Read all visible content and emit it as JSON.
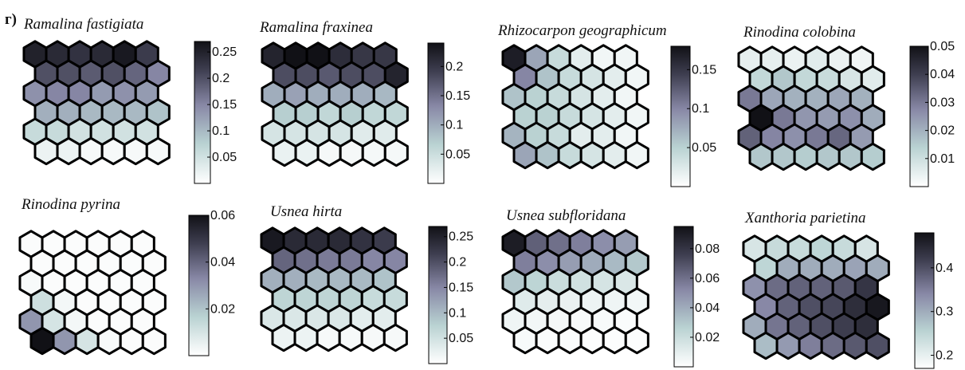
{
  "panel_label": "г)",
  "colormap": {
    "name": "bone",
    "stops": [
      {
        "v": 0.0,
        "color": "#ffffff"
      },
      {
        "v": 0.28,
        "color": "#b9d2d2"
      },
      {
        "v": 0.55,
        "color": "#8888a6"
      },
      {
        "v": 0.8,
        "color": "#3e3e50"
      },
      {
        "v": 1.0,
        "color": "#111116"
      }
    ]
  },
  "chart_data": [
    {
      "type": "heatmap",
      "title": "Ramalina fastigiata",
      "ylim": [
        0,
        0.27
      ],
      "ticks": [
        0.05,
        0.1,
        0.15,
        0.2,
        0.25
      ],
      "tick_labels": [
        "0.05",
        "0.1",
        "0.15",
        "0.2",
        "0.25"
      ],
      "grid_rows": 6,
      "grid_cols": 6,
      "values": [
        [
          0.25,
          0.24,
          0.23,
          0.24,
          0.26,
          0.22
        ],
        [
          0.2,
          0.2,
          0.19,
          0.2,
          0.18,
          0.15
        ],
        [
          0.14,
          0.15,
          0.15,
          0.13,
          0.14,
          0.13
        ],
        [
          0.11,
          0.11,
          0.1,
          0.1,
          0.1,
          0.09
        ],
        [
          0.06,
          0.06,
          0.05,
          0.05,
          0.05,
          0.05
        ],
        [
          0.02,
          0.02,
          0.01,
          0.01,
          0.01,
          0.01
        ]
      ]
    },
    {
      "type": "heatmap",
      "title": "Ramalina fraxinea",
      "ylim": [
        0,
        0.24
      ],
      "ticks": [
        0.05,
        0.1,
        0.15,
        0.2
      ],
      "tick_labels": [
        "0.05",
        "0.1",
        "0.15",
        "0.2"
      ],
      "grid_rows": 6,
      "grid_cols": 6,
      "values": [
        [
          0.22,
          0.24,
          0.24,
          0.21,
          0.2,
          0.2
        ],
        [
          0.18,
          0.18,
          0.17,
          0.18,
          0.18,
          0.22
        ],
        [
          0.1,
          0.11,
          0.1,
          0.1,
          0.1,
          0.09
        ],
        [
          0.07,
          0.07,
          0.06,
          0.07,
          0.06,
          0.06
        ],
        [
          0.04,
          0.04,
          0.04,
          0.04,
          0.03,
          0.03
        ],
        [
          0.02,
          0.02,
          0.01,
          0.01,
          0.01,
          0.01
        ]
      ]
    },
    {
      "type": "heatmap",
      "title": "Rhizocarpon geographicum",
      "ylim": [
        0,
        0.18
      ],
      "ticks": [
        0.05,
        0.1,
        0.15
      ],
      "tick_labels": [
        "0.05",
        "0.1",
        "0.15"
      ],
      "grid_rows": 6,
      "grid_cols": 6,
      "values": [
        [
          0.17,
          0.08,
          0.04,
          0.02,
          0.01,
          0.01
        ],
        [
          0.1,
          0.06,
          0.04,
          0.03,
          0.02,
          0.01
        ],
        [
          0.06,
          0.05,
          0.04,
          0.03,
          0.02,
          0.01
        ],
        [
          0.05,
          0.05,
          0.04,
          0.03,
          0.02,
          0.01
        ],
        [
          0.07,
          0.05,
          0.04,
          0.02,
          0.02,
          0.01
        ],
        [
          0.08,
          0.06,
          0.04,
          0.03,
          0.02,
          0.01
        ]
      ]
    },
    {
      "type": "heatmap",
      "title": "Rinodina colobina",
      "ylim": [
        0,
        0.05
      ],
      "ticks": [
        0.01,
        0.02,
        0.03,
        0.04,
        0.05
      ],
      "tick_labels": [
        "0.01",
        "0.02",
        "0.03",
        "0.04",
        "0.05"
      ],
      "grid_rows": 6,
      "grid_cols": 6,
      "values": [
        [
          0.005,
          0.005,
          0.004,
          0.006,
          0.004,
          0.003
        ],
        [
          0.012,
          0.016,
          0.012,
          0.011,
          0.008,
          0.006
        ],
        [
          0.03,
          0.022,
          0.02,
          0.02,
          0.022,
          0.02
        ],
        [
          0.05,
          0.03,
          0.025,
          0.024,
          0.026,
          0.021
        ],
        [
          0.034,
          0.028,
          0.026,
          0.03,
          0.033,
          0.024
        ],
        [
          0.016,
          0.016,
          0.015,
          0.016,
          0.016,
          0.015
        ]
      ]
    },
    {
      "type": "heatmap",
      "title": "Rinodina pyrina",
      "ylim": [
        0,
        0.06
      ],
      "ticks": [
        0.02,
        0.04,
        0.06
      ],
      "tick_labels": [
        "0.02",
        "0.04",
        "0.06"
      ],
      "grid_rows": 6,
      "grid_cols": 6,
      "values": [
        [
          0.001,
          0.001,
          0.001,
          0.001,
          0.001,
          0.001
        ],
        [
          0.001,
          0.001,
          0.001,
          0.001,
          0.001,
          0.001
        ],
        [
          0.002,
          0.001,
          0.001,
          0.001,
          0.001,
          0.001
        ],
        [
          0.012,
          0.003,
          0.001,
          0.001,
          0.001,
          0.001
        ],
        [
          0.03,
          0.01,
          0.003,
          0.001,
          0.001,
          0.001
        ],
        [
          0.06,
          0.03,
          0.01,
          0.002,
          0.001,
          0.001
        ]
      ]
    },
    {
      "type": "heatmap",
      "title": "Usnea hirta",
      "ylim": [
        0,
        0.27
      ],
      "ticks": [
        0.05,
        0.1,
        0.15,
        0.2,
        0.25
      ],
      "tick_labels": [
        "0.05",
        "0.1",
        "0.15",
        "0.2",
        "0.25"
      ],
      "grid_rows": 6,
      "grid_cols": 6,
      "values": [
        [
          0.26,
          0.24,
          0.24,
          0.24,
          0.23,
          0.22
        ],
        [
          0.18,
          0.17,
          0.16,
          0.16,
          0.15,
          0.15
        ],
        [
          0.11,
          0.11,
          0.1,
          0.1,
          0.1,
          0.09
        ],
        [
          0.07,
          0.07,
          0.07,
          0.07,
          0.06,
          0.06
        ],
        [
          0.04,
          0.04,
          0.04,
          0.04,
          0.03,
          0.03
        ],
        [
          0.02,
          0.02,
          0.01,
          0.01,
          0.01,
          0.01
        ]
      ]
    },
    {
      "type": "heatmap",
      "title": "Usnea subfloridana",
      "ylim": [
        0,
        0.095
      ],
      "ticks": [
        0.02,
        0.04,
        0.06,
        0.08
      ],
      "tick_labels": [
        "0.02",
        "0.04",
        "0.06",
        "0.08"
      ],
      "grid_rows": 6,
      "grid_cols": 6,
      "values": [
        [
          0.09,
          0.065,
          0.06,
          0.055,
          0.05,
          0.045
        ],
        [
          0.055,
          0.05,
          0.045,
          0.04,
          0.035,
          0.03
        ],
        [
          0.03,
          0.025,
          0.02,
          0.018,
          0.016,
          0.014
        ],
        [
          0.012,
          0.01,
          0.008,
          0.007,
          0.006,
          0.005
        ],
        [
          0.006,
          0.005,
          0.004,
          0.003,
          0.003,
          0.002
        ],
        [
          0.003,
          0.002,
          0.002,
          0.001,
          0.001,
          0.001
        ]
      ]
    },
    {
      "type": "heatmap",
      "title": "Xanthoria parietina",
      "ylim": [
        0.17,
        0.48
      ],
      "ticks": [
        0.2,
        0.3,
        0.4
      ],
      "tick_labels": [
        "0.2",
        "0.3",
        "0.4"
      ],
      "grid_rows": 6,
      "grid_cols": 6,
      "values": [
        [
          0.22,
          0.24,
          0.24,
          0.25,
          0.24,
          0.22
        ],
        [
          0.25,
          0.3,
          0.3,
          0.3,
          0.31,
          0.3
        ],
        [
          0.33,
          0.37,
          0.38,
          0.38,
          0.39,
          0.43
        ],
        [
          0.34,
          0.38,
          0.4,
          0.41,
          0.44,
          0.47
        ],
        [
          0.3,
          0.36,
          0.38,
          0.4,
          0.42,
          0.44
        ],
        [
          0.28,
          0.32,
          0.35,
          0.37,
          0.39,
          0.4
        ]
      ]
    }
  ]
}
